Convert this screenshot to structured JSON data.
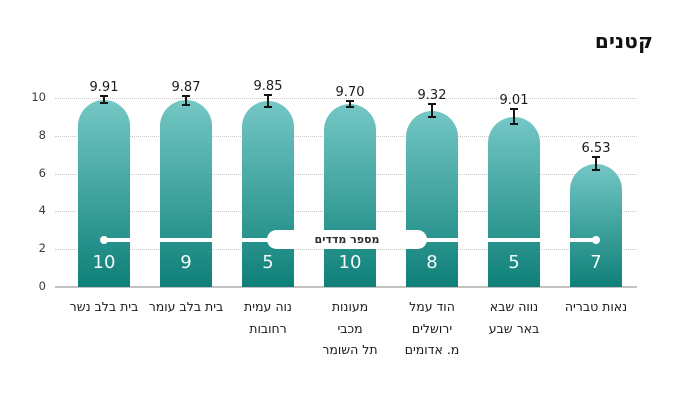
{
  "title": "קטנים",
  "chart_data": {
    "type": "bar",
    "title": "קטנים",
    "categories": [
      "בית בלב נשר",
      "בית בלב עומר",
      "נוה עמית רחובות",
      "מעונות מכבי תל השומר",
      "הוד עמל ירושלים מ. אדומים",
      "נווה שבא באר שבע",
      "נאות טבריה"
    ],
    "category_lines": [
      [
        "בית בלב נשר"
      ],
      [
        "בית בלב עומר"
      ],
      [
        "נוה עמית",
        "רחובות"
      ],
      [
        "מעונות",
        "מכבי",
        "תל השומר"
      ],
      [
        "הוד עמל",
        "ירושלים",
        "מ. אדומים"
      ],
      [
        "נווה שבא",
        "באר שבע"
      ],
      [
        "נאות טבריה"
      ]
    ],
    "values": [
      9.91,
      9.87,
      9.85,
      9.7,
      9.32,
      9.01,
      6.53
    ],
    "value_labels": [
      "9.91",
      "9.87",
      "9.85",
      "9.70",
      "9.32",
      "9.01",
      "6.53"
    ],
    "error_bars": [
      0.2,
      0.25,
      0.3,
      0.15,
      0.35,
      0.4,
      0.35
    ],
    "bar_counts": [
      10,
      9,
      5,
      10,
      8,
      5,
      7
    ],
    "counts_label": "מספר מדדים",
    "counts_line_y": 2.5,
    "y_ticks": [
      0,
      2,
      4,
      6,
      8,
      10
    ],
    "ylim": [
      0,
      10
    ],
    "grid": "dotted-horizontal",
    "legend": "none",
    "colors": {
      "bar_gradient_top": "#74c7c5",
      "bar_gradient_bottom": "#0e8078",
      "bar_count_text": "#ffffff",
      "counts_line": "#ffffff",
      "error_bar": "#151515",
      "value_text": "#1b1b1b",
      "grid": "#c9c9c9",
      "baseline": "#c3c3c3",
      "title_text": "#111111"
    }
  }
}
